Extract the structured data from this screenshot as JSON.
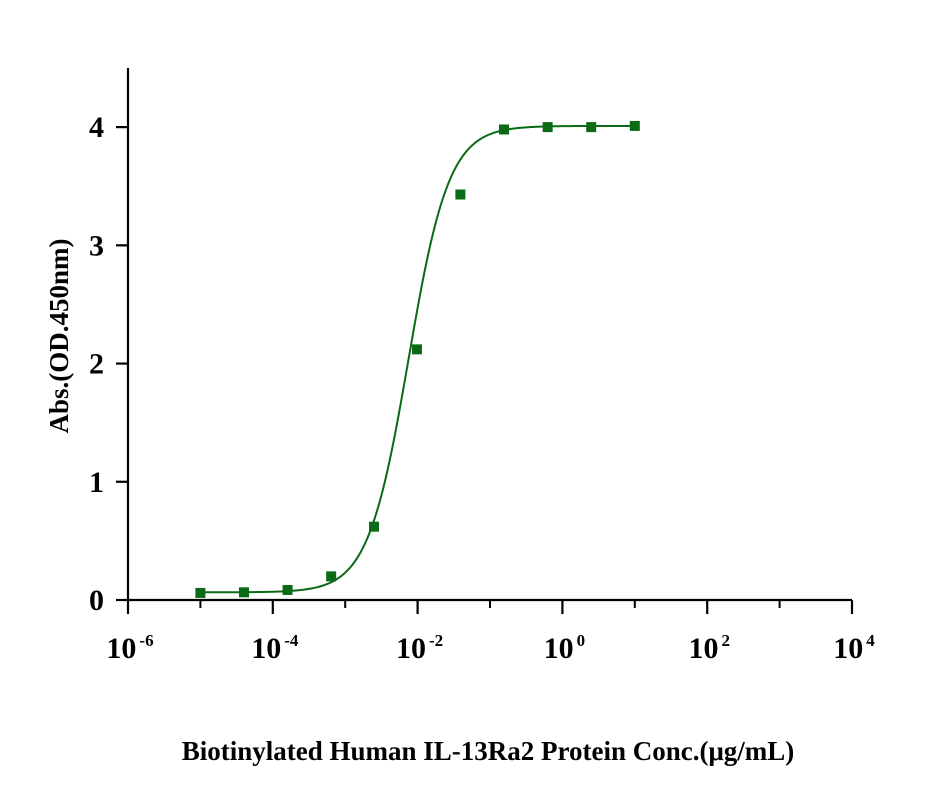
{
  "chart_data": {
    "type": "scatter",
    "xscale": "log",
    "xlabel": "Biotinylated Human IL-13Ra2 Protein Conc.(μg/mL)",
    "ylabel": "Abs.(OD.450nm)",
    "xlim": [
      1e-06,
      10000
    ],
    "ylim": [
      0,
      4.5
    ],
    "x_ticks": [
      {
        "base": "10",
        "exp": "-6",
        "value": 1e-06
      },
      {
        "base": "10",
        "exp": "-4",
        "value": 0.0001
      },
      {
        "base": "10",
        "exp": "-2",
        "value": 0.01
      },
      {
        "base": "10",
        "exp": "0",
        "value": 1
      },
      {
        "base": "10",
        "exp": "2",
        "value": 100
      },
      {
        "base": "10",
        "exp": "4",
        "value": 10000
      }
    ],
    "y_ticks": [
      {
        "label": "0",
        "value": 0
      },
      {
        "label": "1",
        "value": 1
      },
      {
        "label": "2",
        "value": 2
      },
      {
        "label": "3",
        "value": 3
      },
      {
        "label": "4",
        "value": 4
      }
    ],
    "grid": false,
    "legend": "none",
    "series": [
      {
        "color": "#0b6a16",
        "marker": "square",
        "fit": "4PL",
        "points": [
          {
            "x": 1e-05,
            "y": 0.06
          },
          {
            "x": 4e-05,
            "y": 0.065
          },
          {
            "x": 0.00016,
            "y": 0.085
          },
          {
            "x": 0.00064,
            "y": 0.2
          },
          {
            "x": 0.0025,
            "y": 0.62
          },
          {
            "x": 0.0098,
            "y": 2.12
          },
          {
            "x": 0.039,
            "y": 3.43
          },
          {
            "x": 0.156,
            "y": 3.98
          },
          {
            "x": 0.625,
            "y": 4.0
          },
          {
            "x": 2.5,
            "y": 4.0
          },
          {
            "x": 10,
            "y": 4.01
          }
        ]
      }
    ]
  }
}
